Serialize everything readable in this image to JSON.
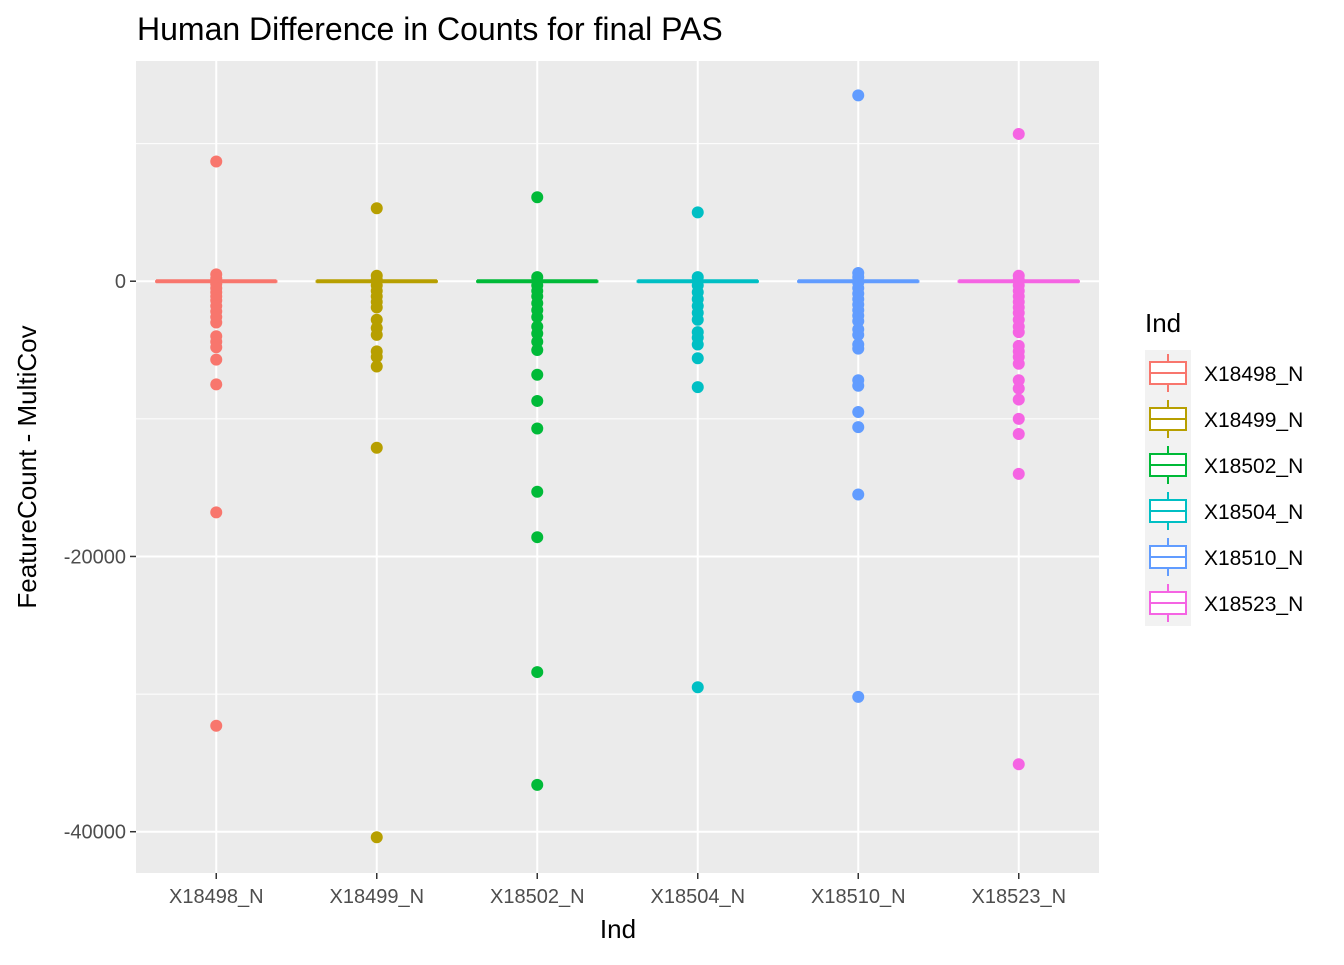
{
  "chart_data": {
    "type": "boxplot",
    "title": "Human Difference in Counts for final PAS",
    "xlabel": "Ind",
    "ylabel": "FeatureCount - MultiCov",
    "ylim": [
      -43000,
      16000
    ],
    "yticks": [
      -40000,
      -20000,
      0
    ],
    "ytick_labels": [
      "-40000",
      "-20000",
      "0"
    ],
    "grid": true,
    "legend": {
      "title": "Ind",
      "position": "right"
    },
    "categories": [
      "X18498_N",
      "X18499_N",
      "X18502_N",
      "X18504_N",
      "X18510_N",
      "X18523_N"
    ],
    "series": [
      {
        "name": "X18498_N",
        "color": "#F8766D",
        "median": 0,
        "q1": 0,
        "q3": 0,
        "outliers": [
          8700,
          500,
          200,
          -200,
          -500,
          -800,
          -1100,
          -1400,
          -1800,
          -2200,
          -2600,
          -3000,
          -4000,
          -4400,
          -4800,
          -5700,
          -7500,
          -16800,
          -32300
        ]
      },
      {
        "name": "X18499_N",
        "color": "#B79F00",
        "median": 0,
        "q1": 0,
        "q3": 0,
        "outliers": [
          5300,
          400,
          100,
          -300,
          -700,
          -1100,
          -1500,
          -1900,
          -2800,
          -3400,
          -3900,
          -5100,
          -5500,
          -6200,
          -12100,
          -40400
        ]
      },
      {
        "name": "X18502_N",
        "color": "#00BA38",
        "median": 0,
        "q1": 0,
        "q3": 0,
        "outliers": [
          6100,
          300,
          -300,
          -700,
          -1100,
          -1600,
          -2100,
          -2600,
          -3300,
          -3800,
          -4400,
          -5000,
          -6800,
          -8700,
          -10700,
          -15300,
          -18600,
          -28400,
          -36600
        ]
      },
      {
        "name": "X18504_N",
        "color": "#00BFC4",
        "median": 0,
        "q1": 0,
        "q3": 0,
        "outliers": [
          5000,
          300,
          -300,
          -800,
          -1300,
          -1800,
          -2300,
          -2800,
          -3700,
          -4100,
          -4600,
          -5600,
          -7700,
          -29500
        ]
      },
      {
        "name": "X18510_N",
        "color": "#619CFF",
        "median": 0,
        "q1": 0,
        "q3": 0,
        "outliers": [
          13500,
          600,
          300,
          -100,
          -500,
          -900,
          -1300,
          -1700,
          -2100,
          -2500,
          -2900,
          -3500,
          -3900,
          -4600,
          -4900,
          -7200,
          -7600,
          -9500,
          -10600,
          -15500,
          -30200
        ]
      },
      {
        "name": "X18523_N",
        "color": "#F564E3",
        "median": 0,
        "q1": 0,
        "q3": 0,
        "outliers": [
          10700,
          400,
          100,
          -300,
          -700,
          -1100,
          -1500,
          -1900,
          -2300,
          -2800,
          -3300,
          -3700,
          -4700,
          -5100,
          -5500,
          -6000,
          -7200,
          -7800,
          -8600,
          -10000,
          -11100,
          -14000,
          -35100
        ]
      }
    ]
  }
}
